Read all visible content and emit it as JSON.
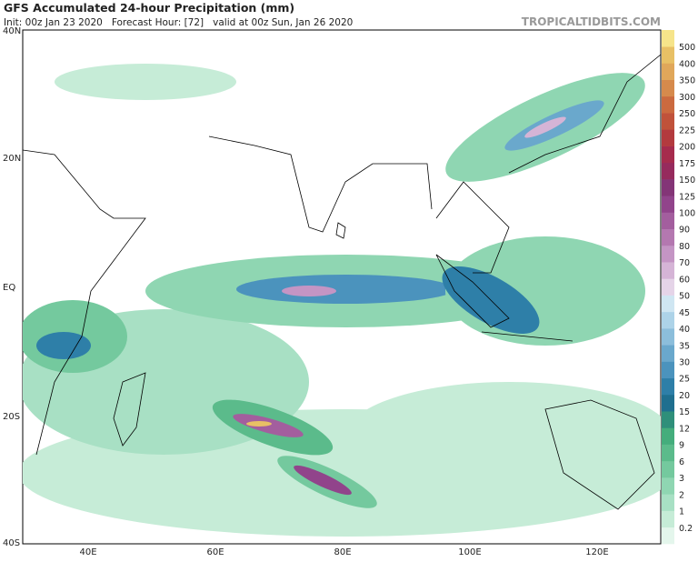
{
  "header": {
    "title": "GFS Accumulated 24-hour Precipitation (mm)",
    "subtitle": "Init: 00z Jan 23 2020   Forecast Hour: [72]   valid at 00z Sun, Jan 26 2020",
    "site": "TROPICALTIDBITS.COM"
  },
  "map": {
    "lat_labels": [
      "40N",
      "20N",
      "EQ",
      "20S",
      "40S"
    ],
    "lon_labels": [
      "40E",
      "60E",
      "80E",
      "100E",
      "120E"
    ]
  },
  "colorbar": {
    "levels": [
      0.2,
      1,
      2,
      3,
      6,
      9,
      12,
      15,
      20,
      25,
      30,
      35,
      40,
      45,
      50,
      60,
      70,
      80,
      90,
      100,
      125,
      150,
      175,
      200,
      225,
      250,
      300,
      350,
      400,
      500
    ],
    "colors": [
      "#e4f6ec",
      "#c6ecd7",
      "#a8e0c4",
      "#8fd6b2",
      "#74c99e",
      "#5bbb8b",
      "#44ad7c",
      "#2f8f7a",
      "#1f6f8f",
      "#2e7fa8",
      "#4b93bd",
      "#6aa8cc",
      "#8cbedb",
      "#add3e8",
      "#cfe6f2",
      "#e5d4e8",
      "#d5b4d6",
      "#c495c4",
      "#b478b0",
      "#a35e9e",
      "#91448b",
      "#833577",
      "#962a5d",
      "#a62b4d",
      "#b33a3e",
      "#c0523a",
      "#cb6a3f",
      "#d68a4c",
      "#e0a75a",
      "#e8c065",
      "#f6e48a"
    ]
  }
}
